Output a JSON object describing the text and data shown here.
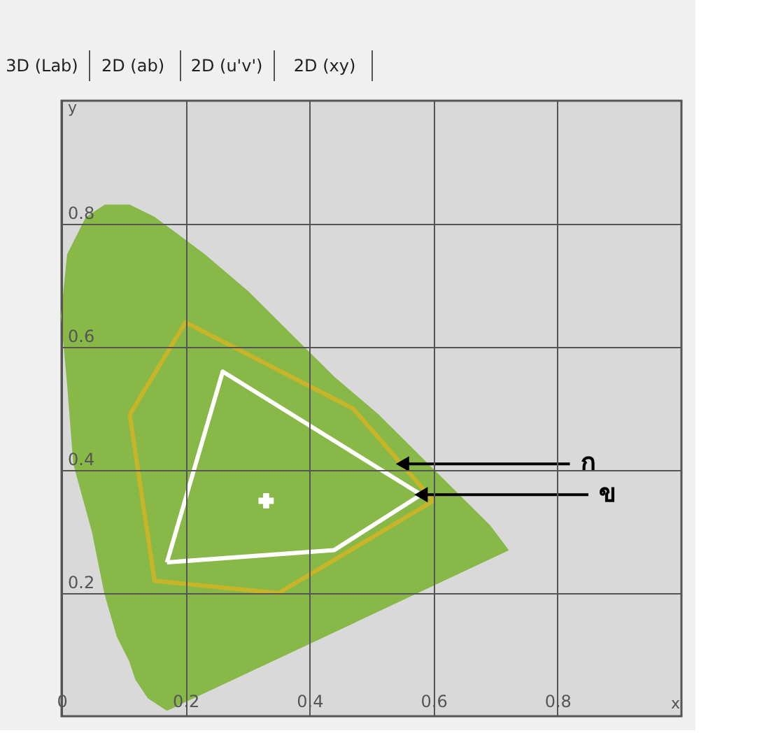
{
  "chart_data": {
    "type": "line",
    "xlabel": "x",
    "ylabel": "y",
    "xlim": [
      0,
      1
    ],
    "ylim": [
      0,
      1
    ],
    "xticks": [
      0,
      0.2,
      0.4,
      0.6,
      0.8
    ],
    "yticks": [
      0.2,
      0.4,
      0.6,
      0.8
    ],
    "grid": true,
    "marker": "none",
    "series": [
      {
        "type": "area",
        "color": "#88b848",
        "x": [
          0.17,
          0.14,
          0.12,
          0.11,
          0.09,
          0.07,
          0.05,
          0.02,
          0.01,
          0.0,
          0.01,
          0.04,
          0.07,
          0.11,
          0.15,
          0.23,
          0.3,
          0.37,
          0.44,
          0.51,
          0.58,
          0.63,
          0.69,
          0.72,
          0.17
        ],
        "values": [
          0.01,
          0.03,
          0.06,
          0.09,
          0.13,
          0.2,
          0.3,
          0.41,
          0.54,
          0.65,
          0.75,
          0.81,
          0.83,
          0.83,
          0.81,
          0.75,
          0.69,
          0.62,
          0.55,
          0.49,
          0.42,
          0.37,
          0.31,
          0.27,
          0.01
        ]
      },
      {
        "color": "#c8b428",
        "x": [
          0.11,
          0.2,
          0.47,
          0.6
        ],
        "values": [
          0.49,
          0.64,
          0.5,
          0.35
        ]
      },
      {
        "color": "#c8b428",
        "x": [
          0.11,
          0.15,
          0.35,
          0.6
        ],
        "values": [
          0.49,
          0.22,
          0.2,
          0.35
        ]
      },
      {
        "color": "#ffffff",
        "x": [
          0.17,
          0.26,
          0.58
        ],
        "values": [
          0.25,
          0.56,
          0.36
        ]
      },
      {
        "color": "#ffffff",
        "x": [
          0.17,
          0.44,
          0.58
        ],
        "values": [
          0.25,
          0.27,
          0.36
        ]
      },
      {
        "type": "scatter",
        "marker": "cross",
        "color": "#ffffff",
        "x": [
          0.33
        ],
        "values": [
          0.35
        ]
      }
    ],
    "annotations": [
      {
        "text": "ก",
        "x": 0.55,
        "y": 0.41
      },
      {
        "text": "ข",
        "x": 0.58,
        "y": 0.36
      },
      "3D (Lab)",
      "2D (ab)",
      "2D (u'v')",
      "2D (xy)"
    ]
  }
}
